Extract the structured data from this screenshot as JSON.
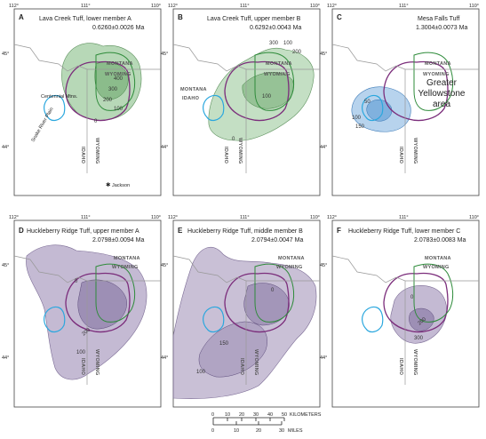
{
  "coords": {
    "lon_labels": [
      "112°",
      "111°",
      "110°"
    ],
    "lat_labels": [
      "45°",
      "44°"
    ]
  },
  "panels": [
    {
      "letter": "A",
      "name": "Lava Creek Tuff, lower member A",
      "age": "0.6260±0.0026 Ma",
      "contours": [
        "400",
        "300",
        "200",
        "100",
        "0"
      ],
      "labels": {
        "centennial": "Centennial Mtns.",
        "snake": "Snake River Plain",
        "jackson": "Jackson",
        "montana": "MONTANA",
        "wyoming": "WYOMING",
        "idaho_v": "IDAHO",
        "wyoming_v": "WYOMING"
      },
      "fill": "#7cb87c"
    },
    {
      "letter": "B",
      "name": "Lava Creek Tuff, upper member B",
      "age": "0.6292±0.0043 Ma",
      "contours": [
        "300",
        "100",
        "200",
        "100",
        "0"
      ],
      "labels": {
        "montana": "MONTANA",
        "wyoming": "WYOMING",
        "montana2": "MONTANA",
        "idaho": "IDAHO",
        "idaho_v": "IDAHO",
        "wyoming_v": "WYOMING"
      },
      "fill": "#7cb87c"
    },
    {
      "letter": "C",
      "name": "Mesa Falls Tuff",
      "age": "1.3004±0.0073 Ma",
      "contours": [
        "50",
        "100",
        "150"
      ],
      "labels": {
        "greater": "Greater Yellowstone area",
        "montana": "MONTANA",
        "wyoming": "WYOMING",
        "idaho_v": "IDAHO",
        "wyoming_v": "WYOMING"
      },
      "fill": "#6fa8dc"
    },
    {
      "letter": "D",
      "name": "Huckleberry Ridge Tuff, upper member A",
      "age": "2.0798±0.0094 Ma",
      "contours": [
        "0",
        "200",
        "100"
      ],
      "labels": {
        "montana": "MONTANA",
        "wyoming": "WYOMING",
        "idaho_v": "IDAHO",
        "wyoming_v": "WYOMING"
      },
      "fill": "#9d8cb5"
    },
    {
      "letter": "E",
      "name": "Huckleberry Ridge Tuff, middle member B",
      "age": "2.0794±0.0047 Ma",
      "contours": [
        "0",
        "150",
        "100"
      ],
      "labels": {
        "montana": "MONTANA",
        "wyoming": "WYOMING",
        "idaho_v": "IDAHO",
        "wyoming_v": "WYOMING"
      },
      "fill": "#9d8cb5"
    },
    {
      "letter": "F",
      "name": "Huckleberry Ridge Tuff, lower member C",
      "age": "2.0783±0.0083 Ma",
      "contours": [
        "0",
        "200",
        "300"
      ],
      "labels": {
        "montana": "MONTANA",
        "wyoming": "WYOMING",
        "idaho_v": "IDAHO",
        "wyoming_v": "WYOMING"
      },
      "fill": "#9d8cb5"
    }
  ],
  "scale": {
    "km_ticks": [
      "0",
      "10",
      "20",
      "30",
      "40",
      "50"
    ],
    "km_unit": "KILOMETERS",
    "mi_ticks": [
      "0",
      "10",
      "20",
      "30"
    ],
    "mi_unit": "MILES"
  },
  "colors": {
    "caldera_outline": "#7b2d7b",
    "yellowstone_outline": "#2e8b3a",
    "snake_outline": "#2aa7de",
    "border": "#999999",
    "frame": "#444444"
  }
}
